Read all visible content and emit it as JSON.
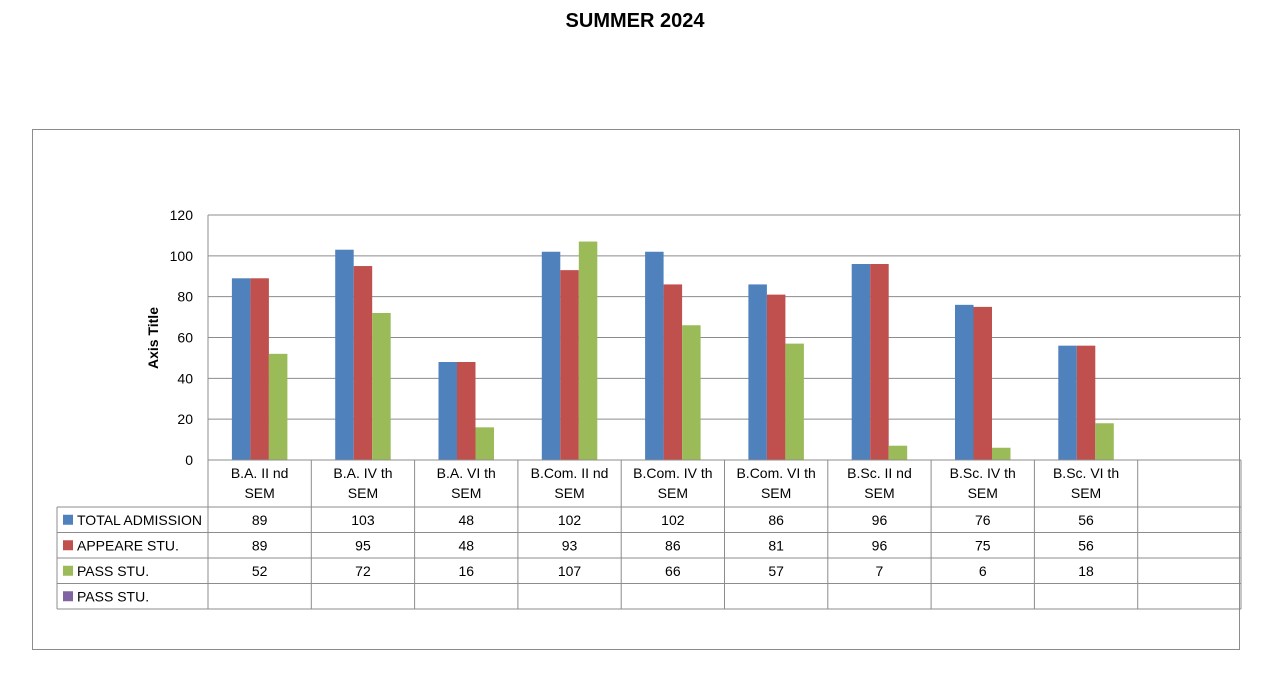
{
  "title": "SUMMER 2024",
  "chart_data": {
    "type": "bar",
    "title": "SUMMER 2024",
    "xlabel": "",
    "ylabel": "Axis Title",
    "ylim": [
      0,
      120
    ],
    "yticks": [
      0,
      20,
      40,
      60,
      80,
      100,
      120
    ],
    "grid": true,
    "legend": "data-table",
    "categories": [
      [
        "B.A. II nd",
        "SEM"
      ],
      [
        "B.A. IV th",
        "SEM"
      ],
      [
        "B.A. VI th",
        "SEM"
      ],
      [
        "B.Com. II nd",
        "SEM"
      ],
      [
        "B.Com. IV th",
        "SEM"
      ],
      [
        "B.Com. VI th",
        "SEM"
      ],
      [
        "B.Sc. II nd",
        "SEM"
      ],
      [
        "B.Sc. IV th",
        "SEM"
      ],
      [
        "B.Sc. VI th",
        "SEM"
      ],
      [
        "",
        ""
      ]
    ],
    "series": [
      {
        "name": "TOTAL ADMISSION",
        "color": "#4F81BD",
        "values": [
          89,
          103,
          48,
          102,
          102,
          86,
          96,
          76,
          56,
          null
        ]
      },
      {
        "name": "APPEARE STU.",
        "color": "#C0504D",
        "values": [
          89,
          95,
          48,
          93,
          86,
          81,
          96,
          75,
          56,
          null
        ]
      },
      {
        "name": "PASS STU.",
        "color": "#9BBB59",
        "values": [
          52,
          72,
          16,
          107,
          66,
          57,
          7,
          6,
          18,
          null
        ]
      },
      {
        "name": "PASS STU.",
        "color": "#8064A2",
        "values": [
          null,
          null,
          null,
          null,
          null,
          null,
          null,
          null,
          null,
          null
        ]
      }
    ]
  }
}
